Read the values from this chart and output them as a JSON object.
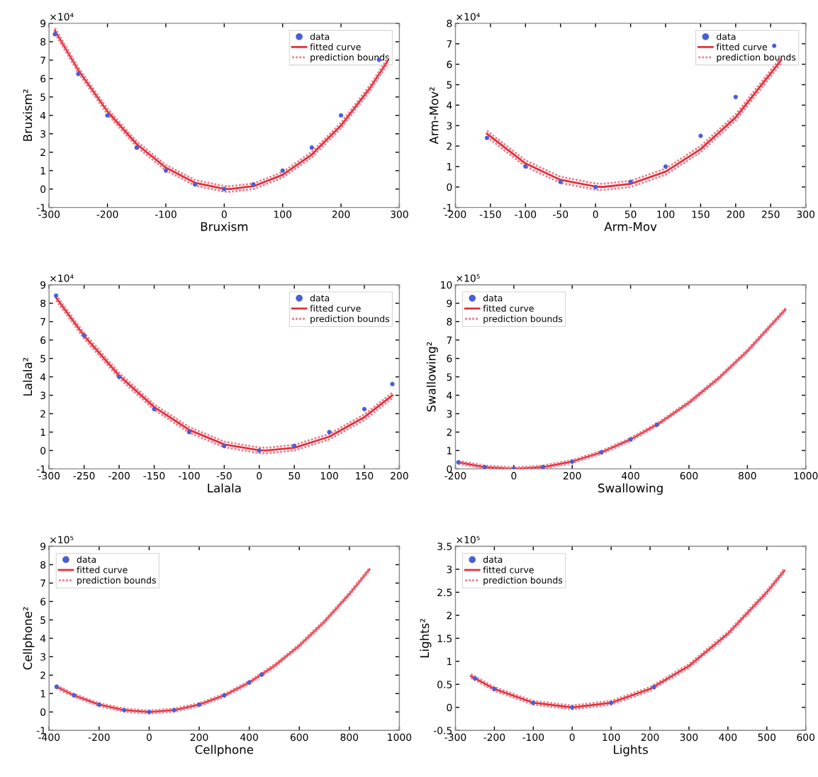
{
  "chart_data": [
    {
      "type": "line",
      "xlabel": "Bruxism",
      "ylabel": "Bruxism²",
      "annotations": [
        "×10⁴"
      ],
      "xlim": [
        -300,
        300
      ],
      "xticks": [
        -300,
        -200,
        -100,
        0,
        100,
        200,
        300
      ],
      "ylim": [
        -1,
        9
      ],
      "yticks": [
        -1,
        0,
        1,
        2,
        3,
        4,
        5,
        6,
        7,
        8,
        9
      ],
      "legend": "top right",
      "grid": false,
      "series": [
        {
          "name": "data",
          "type": "scatter",
          "marker": "circle",
          "color": "#4a5fd6",
          "x": [
            -290,
            -250,
            -200,
            -150,
            -100,
            -50,
            0,
            50,
            100,
            150,
            200,
            265
          ],
          "values": [
            8.41,
            6.25,
            4,
            2.25,
            1,
            0.25,
            0,
            0.25,
            1,
            2.25,
            4,
            7.02
          ]
        },
        {
          "name": "fitted curve",
          "type": "line",
          "line_style": "solid",
          "color": "#e0303a",
          "x": [
            -290,
            -250,
            -200,
            -150,
            -100,
            -50,
            0,
            10,
            50,
            100,
            150,
            200,
            250,
            280
          ],
          "values": [
            8.6,
            6.46,
            4.21,
            2.44,
            1.16,
            0.34,
            0.01,
            0,
            0.15,
            0.77,
            1.87,
            3.45,
            5.5,
            6.96
          ]
        },
        {
          "name": "prediction bounds",
          "type": "line",
          "line_style": "dotted",
          "color": "#f07c8c",
          "x": [
            -290,
            -250,
            -200,
            -150,
            -100,
            -50,
            0,
            10,
            50,
            100,
            150,
            200,
            250,
            280
          ],
          "values": [
            8.75,
            6.61,
            4.36,
            2.59,
            1.31,
            0.49,
            0.16,
            0.15,
            0.3,
            0.92,
            2.02,
            3.6,
            5.65,
            7.11
          ]
        },
        {
          "type": "line",
          "line_style": "dotted",
          "color": "#f07c8c",
          "x": [
            -290,
            -250,
            -200,
            -150,
            -100,
            -50,
            0,
            10,
            50,
            100,
            150,
            200,
            250,
            280
          ],
          "values": [
            8.45,
            6.31,
            4.06,
            2.29,
            1.01,
            0.19,
            -0.14,
            -0.15,
            0,
            0.62,
            1.72,
            3.3,
            5.35,
            6.81
          ]
        }
      ]
    },
    {
      "type": "line",
      "xlabel": "Arm-Mov",
      "ylabel": "Arm-Mov²",
      "annotations": [
        "×10⁴"
      ],
      "xlim": [
        -200,
        300
      ],
      "xticks": [
        -200,
        -150,
        -100,
        -50,
        0,
        50,
        100,
        150,
        200,
        250,
        300
      ],
      "ylim": [
        -1,
        8
      ],
      "yticks": [
        -1,
        0,
        1,
        2,
        3,
        4,
        5,
        6,
        7,
        8
      ],
      "legend": "top right",
      "grid": false,
      "series": [
        {
          "name": "data",
          "type": "scatter",
          "marker": "circle",
          "color": "#4a5fd6",
          "x": [
            -155,
            -100,
            -50,
            0,
            50,
            100,
            150,
            200,
            255
          ],
          "values": [
            2.4,
            1,
            0.25,
            0,
            0.25,
            1,
            2.5,
            4.4,
            6.9
          ]
        },
        {
          "name": "fitted curve",
          "type": "line",
          "line_style": "solid",
          "color": "#e0303a",
          "x": [
            -155,
            -100,
            -50,
            0,
            10,
            50,
            100,
            150,
            200,
            265
          ],
          "values": [
            2.6,
            1.15,
            0.35,
            0.02,
            0,
            0.15,
            0.75,
            1.85,
            3.4,
            6.2
          ]
        },
        {
          "name": "prediction bounds",
          "type": "line",
          "line_style": "dotted",
          "color": "#f07c8c",
          "x": [
            -155,
            -100,
            -50,
            0,
            10,
            50,
            100,
            150,
            200,
            265
          ],
          "values": [
            2.75,
            1.3,
            0.5,
            0.17,
            0.15,
            0.3,
            0.9,
            2,
            3.55,
            6.35
          ]
        },
        {
          "type": "line",
          "line_style": "dotted",
          "color": "#f07c8c",
          "x": [
            -155,
            -100,
            -50,
            0,
            10,
            50,
            100,
            150,
            200,
            265
          ],
          "values": [
            2.45,
            1,
            0.2,
            -0.13,
            -0.15,
            0,
            0.6,
            1.7,
            3.25,
            6.05
          ]
        }
      ]
    },
    {
      "type": "line",
      "xlabel": "Lalala",
      "ylabel": "Lalala²",
      "annotations": [
        "×10⁴"
      ],
      "xlim": [
        -300,
        200
      ],
      "xticks": [
        -300,
        -250,
        -200,
        -150,
        -100,
        -50,
        0,
        50,
        100,
        150,
        200
      ],
      "ylim": [
        -1,
        9
      ],
      "yticks": [
        -1,
        0,
        1,
        2,
        3,
        4,
        5,
        6,
        7,
        8,
        9
      ],
      "legend": "top right",
      "grid": false,
      "series": [
        {
          "name": "data",
          "type": "scatter",
          "marker": "circle",
          "color": "#4a5fd6",
          "x": [
            -290,
            -250,
            -200,
            -150,
            -100,
            -50,
            0,
            50,
            100,
            150,
            190
          ],
          "values": [
            8.41,
            6.25,
            4,
            2.25,
            1,
            0.25,
            0,
            0.25,
            1,
            2.25,
            3.61
          ]
        },
        {
          "name": "fitted curve",
          "type": "line",
          "line_style": "solid",
          "color": "#e0303a",
          "x": [
            -290,
            -250,
            -200,
            -150,
            -100,
            -50,
            0,
            10,
            50,
            100,
            150,
            190
          ],
          "values": [
            8.3,
            6.23,
            4.07,
            2.36,
            1.12,
            0.33,
            0.01,
            0,
            0.15,
            0.75,
            1.81,
            2.99
          ]
        },
        {
          "name": "prediction bounds",
          "type": "line",
          "line_style": "dotted",
          "color": "#f07c8c",
          "x": [
            -290,
            -250,
            -200,
            -150,
            -100,
            -50,
            0,
            10,
            50,
            100,
            150,
            190
          ],
          "values": [
            8.45,
            6.38,
            4.22,
            2.51,
            1.27,
            0.48,
            0.16,
            0.15,
            0.3,
            0.9,
            1.96,
            3.14
          ]
        },
        {
          "type": "line",
          "line_style": "dotted",
          "color": "#f07c8c",
          "x": [
            -290,
            -250,
            -200,
            -150,
            -100,
            -50,
            0,
            10,
            50,
            100,
            150,
            190
          ],
          "values": [
            8.15,
            6.08,
            3.92,
            2.21,
            0.97,
            0.18,
            -0.14,
            -0.15,
            0,
            0.6,
            1.66,
            2.84
          ]
        }
      ]
    },
    {
      "type": "line",
      "xlabel": "Swallowing",
      "ylabel": "Swallowing²",
      "annotations": [
        "×10⁵"
      ],
      "xlim": [
        -200,
        1000
      ],
      "xticks": [
        -200,
        0,
        200,
        400,
        600,
        800,
        1000
      ],
      "ylim": [
        0,
        10
      ],
      "yticks": [
        0,
        1,
        2,
        3,
        4,
        5,
        6,
        7,
        8,
        9,
        10
      ],
      "legend": "top left",
      "grid": false,
      "series": [
        {
          "name": "data",
          "type": "scatter",
          "marker": "circle",
          "color": "#4a5fd6",
          "x": [
            -190,
            -100,
            0,
            100,
            200,
            300,
            400,
            490
          ],
          "values": [
            0.36,
            0.1,
            0,
            0.1,
            0.4,
            0.9,
            1.6,
            2.4
          ]
        },
        {
          "name": "fitted curve",
          "type": "line",
          "line_style": "solid",
          "color": "#e0303a",
          "x": [
            -190,
            -100,
            0,
            100,
            200,
            300,
            400,
            500,
            600,
            700,
            800,
            930
          ],
          "values": [
            0.36,
            0.1,
            0,
            0.1,
            0.4,
            0.9,
            1.6,
            2.5,
            3.6,
            4.9,
            6.4,
            8.65
          ]
        },
        {
          "name": "prediction bounds",
          "type": "line",
          "line_style": "dotted",
          "color": "#f07c8c",
          "x": [
            -190,
            -100,
            0,
            100,
            200,
            300,
            400,
            500,
            600,
            700,
            800,
            930
          ],
          "values": [
            0.44,
            0.18,
            0.08,
            0.18,
            0.48,
            0.98,
            1.68,
            2.58,
            3.68,
            4.98,
            6.48,
            8.73
          ]
        },
        {
          "type": "line",
          "line_style": "dotted",
          "color": "#f07c8c",
          "x": [
            -190,
            -100,
            0,
            100,
            200,
            300,
            400,
            500,
            600,
            700,
            800,
            930
          ],
          "values": [
            0.28,
            0.02,
            0,
            0.02,
            0.32,
            0.82,
            1.52,
            2.42,
            3.52,
            4.82,
            6.32,
            8.57
          ]
        }
      ]
    },
    {
      "type": "line",
      "xlabel": "Cellphone",
      "ylabel": "Cellphone²",
      "annotations": [
        "×10⁵"
      ],
      "xlim": [
        -400,
        1000
      ],
      "xticks": [
        -400,
        -200,
        0,
        200,
        400,
        600,
        800,
        1000
      ],
      "ylim": [
        -1,
        9
      ],
      "yticks": [
        -1,
        0,
        1,
        2,
        3,
        4,
        5,
        6,
        7,
        8,
        9
      ],
      "legend": "top left",
      "grid": false,
      "series": [
        {
          "name": "data",
          "type": "scatter",
          "marker": "circle",
          "color": "#4a5fd6",
          "x": [
            -370,
            -300,
            -200,
            -100,
            0,
            100,
            200,
            300,
            400,
            450
          ],
          "values": [
            1.37,
            0.9,
            0.4,
            0.1,
            0,
            0.1,
            0.4,
            0.9,
            1.6,
            2.03
          ]
        },
        {
          "name": "fitted curve",
          "type": "line",
          "line_style": "solid",
          "color": "#e0303a",
          "x": [
            -370,
            -300,
            -200,
            -100,
            0,
            100,
            200,
            300,
            400,
            500,
            600,
            700,
            800,
            880
          ],
          "values": [
            1.37,
            0.9,
            0.4,
            0.1,
            0,
            0.1,
            0.4,
            0.9,
            1.6,
            2.5,
            3.6,
            4.9,
            6.4,
            7.74
          ]
        },
        {
          "name": "prediction bounds",
          "type": "line",
          "line_style": "dotted",
          "color": "#f07c8c",
          "x": [
            -370,
            -300,
            -200,
            -100,
            0,
            100,
            200,
            300,
            400,
            500,
            600,
            700,
            800,
            880
          ],
          "values": [
            1.45,
            0.98,
            0.48,
            0.18,
            0.08,
            0.18,
            0.48,
            0.98,
            1.68,
            2.58,
            3.68,
            4.98,
            6.48,
            7.82
          ]
        },
        {
          "type": "line",
          "line_style": "dotted",
          "color": "#f07c8c",
          "x": [
            -370,
            -300,
            -200,
            -100,
            0,
            100,
            200,
            300,
            400,
            500,
            600,
            700,
            800,
            880
          ],
          "values": [
            1.29,
            0.82,
            0.32,
            0.02,
            -0.08,
            0.02,
            0.32,
            0.82,
            1.52,
            2.42,
            3.52,
            4.82,
            6.32,
            7.66
          ]
        }
      ]
    },
    {
      "type": "line",
      "xlabel": "Lights",
      "ylabel": "Lights²",
      "annotations": [
        "×10⁵"
      ],
      "xlim": [
        -300,
        600
      ],
      "xticks": [
        -300,
        -200,
        -100,
        0,
        100,
        200,
        300,
        400,
        500,
        600
      ],
      "ylim": [
        -0.5,
        3.5
      ],
      "yticks": [
        -0.5,
        0,
        0.5,
        1,
        1.5,
        2,
        2.5,
        3,
        3.5
      ],
      "legend": "top left",
      "grid": false,
      "series": [
        {
          "name": "data",
          "type": "scatter",
          "marker": "circle",
          "color": "#4a5fd6",
          "x": [
            -250,
            -200,
            -100,
            0,
            100,
            210
          ],
          "values": [
            0.63,
            0.4,
            0.1,
            0,
            0.1,
            0.44
          ]
        },
        {
          "name": "fitted curve",
          "type": "line",
          "line_style": "solid",
          "color": "#e0303a",
          "x": [
            -260,
            -200,
            -100,
            0,
            100,
            200,
            300,
            400,
            500,
            545
          ],
          "values": [
            0.68,
            0.4,
            0.1,
            0,
            0.1,
            0.4,
            0.9,
            1.6,
            2.5,
            2.97
          ]
        },
        {
          "name": "prediction bounds",
          "type": "line",
          "line_style": "dotted",
          "color": "#f07c8c",
          "x": [
            -260,
            -200,
            -100,
            0,
            100,
            200,
            300,
            400,
            500,
            545
          ],
          "values": [
            0.72,
            0.44,
            0.14,
            0.04,
            0.14,
            0.44,
            0.94,
            1.64,
            2.54,
            3.01
          ]
        },
        {
          "type": "line",
          "line_style": "dotted",
          "color": "#f07c8c",
          "x": [
            -260,
            -200,
            -100,
            0,
            100,
            200,
            300,
            400,
            500,
            545
          ],
          "values": [
            0.64,
            0.36,
            0.06,
            -0.04,
            0.06,
            0.36,
            0.86,
            1.56,
            2.46,
            2.93
          ]
        }
      ]
    }
  ]
}
